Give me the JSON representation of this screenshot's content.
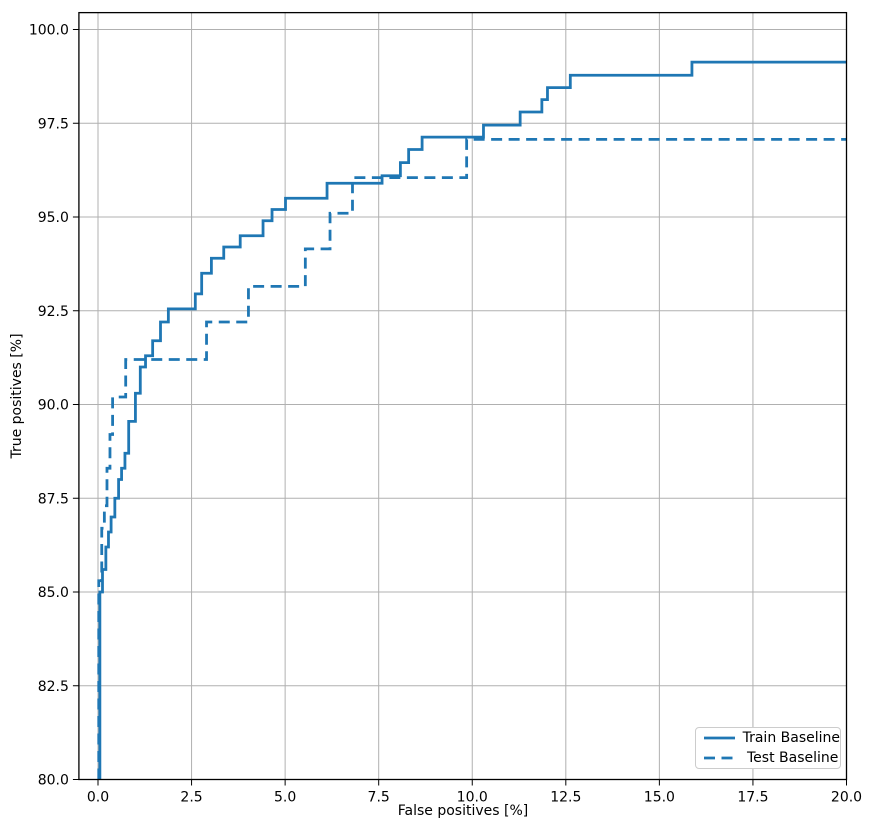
{
  "figure": {
    "background": "#ffffff",
    "title": ""
  },
  "chart_data": {
    "type": "line",
    "subtype": "step-roc-curve",
    "title": "",
    "xlabel": "False positives [%]",
    "ylabel": "True positives [%]",
    "xlim": [
      -0.51,
      20.0
    ],
    "ylim": [
      80.0,
      100.45
    ],
    "grid": true,
    "grid_color": "#b0b0b0",
    "spine_color": "#000000",
    "line_color": "#1f77b4",
    "x_ticks": [
      0.0,
      2.5,
      5.0,
      7.5,
      10.0,
      12.5,
      15.0,
      17.5,
      20.0
    ],
    "x_tick_labels": [
      "0.0",
      "2.5",
      "5.0",
      "7.5",
      "10.0",
      "12.5",
      "15.0",
      "17.5",
      "20.0"
    ],
    "y_ticks": [
      80.0,
      82.5,
      85.0,
      87.5,
      90.0,
      92.5,
      95.0,
      97.5,
      100.0
    ],
    "y_tick_labels": [
      "80.0",
      "82.5",
      "85.0",
      "87.5",
      "90.0",
      "92.5",
      "95.0",
      "97.5",
      "100.0"
    ],
    "legend": {
      "position": "lower right",
      "items": [
        {
          "label": "Train Baseline",
          "style": "solid"
        },
        {
          "label": "Test Baseline",
          "style": "dashed"
        }
      ]
    },
    "series": [
      {
        "name": "Train Baseline",
        "style": "solid",
        "start_y": 80.0,
        "end_x": 20.0,
        "steps": [
          [
            0.05,
            85.0
          ],
          [
            0.12,
            85.6
          ],
          [
            0.21,
            86.2
          ],
          [
            0.28,
            86.6
          ],
          [
            0.35,
            87.0
          ],
          [
            0.45,
            87.5
          ],
          [
            0.55,
            88.0
          ],
          [
            0.63,
            88.3
          ],
          [
            0.72,
            88.7
          ],
          [
            0.82,
            89.55
          ],
          [
            1.0,
            90.3
          ],
          [
            1.13,
            91.0
          ],
          [
            1.27,
            91.3
          ],
          [
            1.46,
            91.7
          ],
          [
            1.67,
            92.2
          ],
          [
            1.88,
            92.55
          ],
          [
            2.6,
            92.95
          ],
          [
            2.77,
            93.5
          ],
          [
            3.03,
            93.9
          ],
          [
            3.36,
            94.2
          ],
          [
            3.8,
            94.5
          ],
          [
            4.41,
            94.9
          ],
          [
            4.65,
            95.2
          ],
          [
            5.01,
            95.5
          ],
          [
            6.12,
            95.9
          ],
          [
            7.59,
            96.1
          ],
          [
            8.08,
            96.45
          ],
          [
            8.3,
            96.8
          ],
          [
            8.66,
            97.13
          ],
          [
            10.3,
            97.45
          ],
          [
            11.28,
            97.8
          ],
          [
            11.86,
            98.13
          ],
          [
            12.01,
            98.45
          ],
          [
            12.62,
            98.78
          ],
          [
            15.87,
            99.13
          ]
        ]
      },
      {
        "name": "Test Baseline",
        "style": "dashed",
        "start_y": 80.0,
        "end_x": 20.0,
        "steps": [
          [
            0.02,
            85.3
          ],
          [
            0.1,
            86.7
          ],
          [
            0.17,
            87.3
          ],
          [
            0.24,
            88.3
          ],
          [
            0.32,
            89.2
          ],
          [
            0.39,
            90.2
          ],
          [
            0.74,
            91.2
          ],
          [
            2.9,
            92.2
          ],
          [
            4.02,
            93.15
          ],
          [
            5.54,
            94.15
          ],
          [
            6.2,
            95.1
          ],
          [
            6.8,
            96.05
          ],
          [
            9.85,
            97.07
          ]
        ]
      }
    ]
  }
}
